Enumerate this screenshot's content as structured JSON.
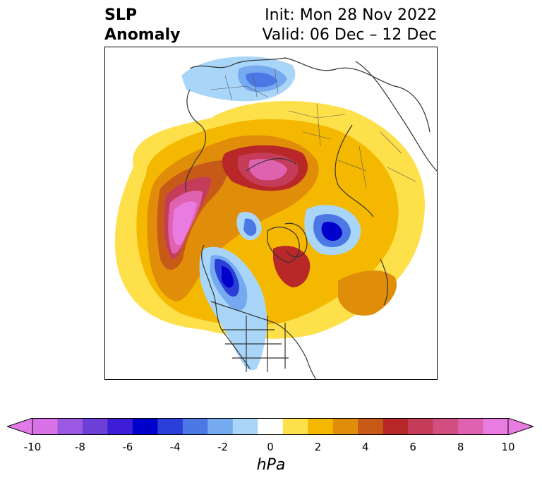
{
  "title": {
    "line1": "SLP",
    "line2": "Anomaly"
  },
  "subtitle": {
    "init": "Init: Mon 28 Nov 2022",
    "valid": "Valid: 06 Dec – 12 Dec"
  },
  "colorbar": {
    "label": "hPa",
    "ticks": [
      "-10",
      "-8",
      "-6",
      "-4",
      "-2",
      "0",
      "2",
      "4",
      "6",
      "8",
      "10"
    ],
    "colors": [
      "#d872e6",
      "#9b58e0",
      "#6b3fd8",
      "#3d1dd6",
      "#0000cc",
      "#2a3fd8",
      "#4c78e6",
      "#76aaf0",
      "#a9d6f8",
      "#ffffff",
      "#fde04a",
      "#f5b800",
      "#e08e0a",
      "#c85a18",
      "#b82828",
      "#c43c5a",
      "#d24e80",
      "#de62b0",
      "#e87ce0"
    ],
    "under_color": "#e07ae8",
    "over_color": "#e87ce0"
  },
  "map": {
    "projection": "north polar stereographic",
    "features": [
      "coastlines",
      "country borders",
      "state/province borders"
    ]
  }
}
